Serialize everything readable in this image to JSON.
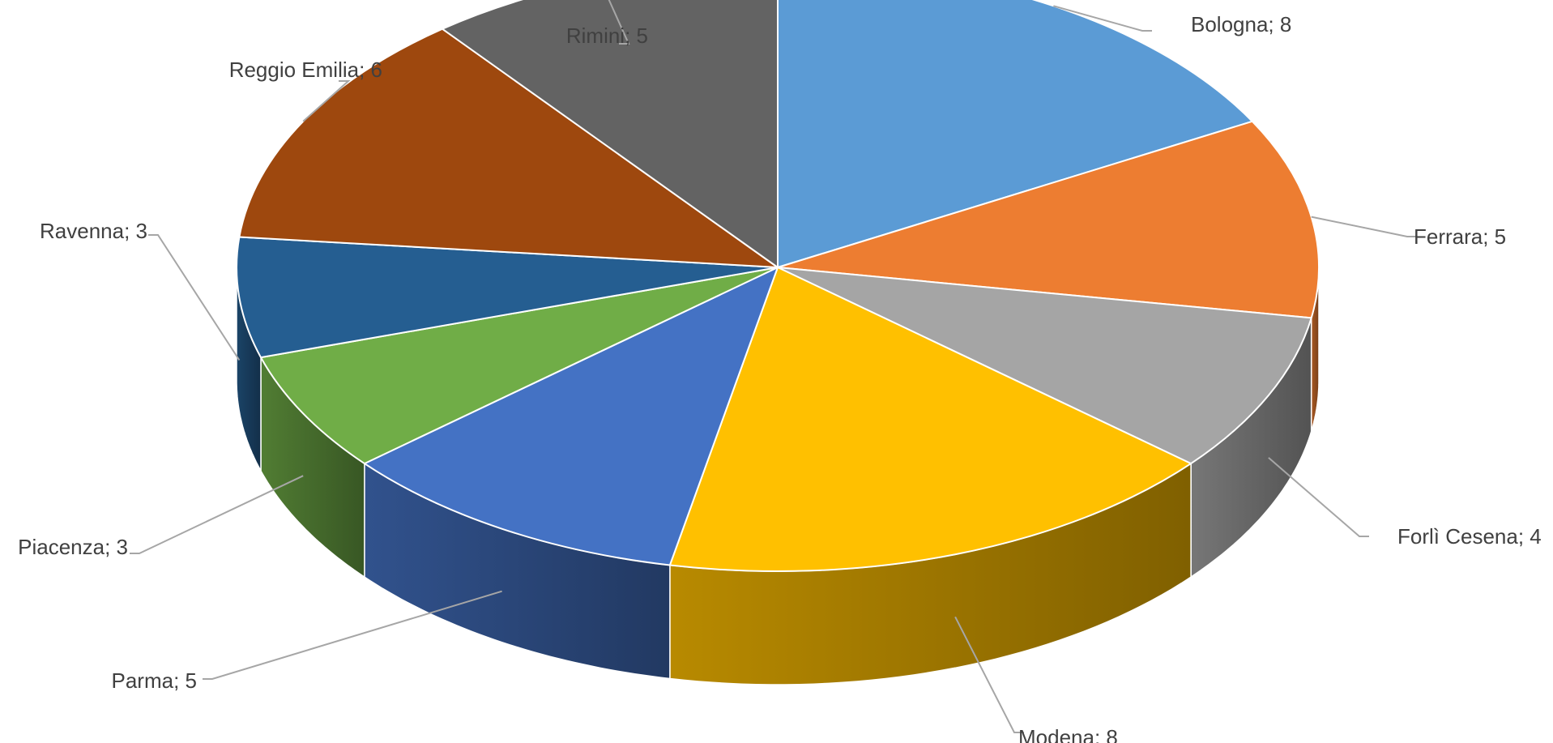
{
  "chart_data": {
    "type": "pie",
    "three_d": true,
    "legend": "none",
    "title": "",
    "slices": [
      {
        "label": "Bologna",
        "value": 8,
        "color": "#5b9bd5",
        "text": "Bologna; 8"
      },
      {
        "label": "Ferrara",
        "value": 5,
        "color": "#ed7d31",
        "text": "Ferrara; 5"
      },
      {
        "label": "Forlì Cesena",
        "value": 4,
        "color": "#a5a5a5",
        "text": "Forlì Cesena; 4"
      },
      {
        "label": "Modena",
        "value": 8,
        "color": "#ffc000",
        "text": "Modena; 8"
      },
      {
        "label": "Parma",
        "value": 5,
        "color": "#4472c4",
        "text": "Parma; 5"
      },
      {
        "label": "Piacenza",
        "value": 3,
        "color": "#70ad47",
        "text": "Piacenza; 3"
      },
      {
        "label": "Ravenna",
        "value": 3,
        "color": "#255e91",
        "text": "Ravenna; 3"
      },
      {
        "label": "Reggio Emilia",
        "value": 6,
        "color": "#9e480e",
        "text": "Reggio Emilia; 6"
      },
      {
        "label": "Rimini",
        "value": 5,
        "color": "#636363",
        "text": "Rimini; 5"
      }
    ]
  }
}
